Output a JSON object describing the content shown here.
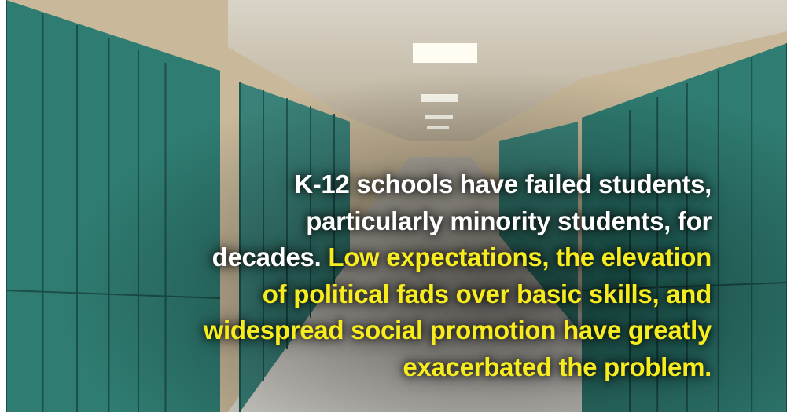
{
  "caption": {
    "lines": [
      {
        "white": "K-12 schools have failed students,"
      },
      {
        "white": "particularly minority students, for"
      },
      {
        "white": "decades.",
        "yellow": "Low expectations, the elevation"
      },
      {
        "yellow": "of political fads over basic skills, and"
      },
      {
        "yellow": "widespread social promotion have greatly"
      },
      {
        "yellow": "exacerbated the problem."
      }
    ]
  }
}
